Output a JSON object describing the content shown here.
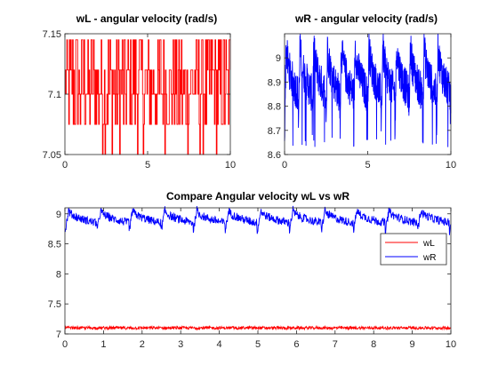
{
  "colors": {
    "wL": "#ff0000",
    "wR": "#0000ff",
    "axis": "#262626",
    "background": "#ffffff"
  },
  "chart_data": [
    {
      "type": "line",
      "title": "wL - angular velocity (rad/s)",
      "xlim": [
        0,
        10
      ],
      "ylim": [
        7.05,
        7.15
      ],
      "xticks": [
        "0",
        "5",
        "10"
      ],
      "yticks": [
        "7.05",
        "7.1",
        "7.15"
      ],
      "grid": false,
      "series": [
        {
          "color": "#ff0000",
          "levels": [
            7.075,
            7.1,
            7.12,
            7.145
          ],
          "extreme_low": 7.05,
          "x_range": [
            0,
            10
          ]
        }
      ]
    },
    {
      "type": "line",
      "title": "wR - angular velocity (rad/s)",
      "xlim": [
        0,
        10
      ],
      "ylim": [
        8.6,
        9.1
      ],
      "xticks": [
        "0",
        "5",
        "10"
      ],
      "yticks": [
        "8.6",
        "8.7",
        "8.8",
        "8.9",
        "9"
      ],
      "grid": false,
      "series": [
        {
          "color": "#0000ff",
          "period": 0.83,
          "peak": 9.07,
          "trough": 8.7,
          "baseline": 8.85,
          "x_range": [
            0,
            10
          ]
        }
      ]
    },
    {
      "type": "line",
      "title": "Compare Angular velocity wL vs wR",
      "xlim": [
        0,
        10
      ],
      "ylim": [
        7,
        9.1
      ],
      "xticks": [
        "0",
        "1",
        "2",
        "3",
        "4",
        "5",
        "6",
        "7",
        "8",
        "9",
        "10"
      ],
      "yticks": [
        "7",
        "7.5",
        "8",
        "8.5",
        "9"
      ],
      "grid": false,
      "legend": {
        "placement": "right",
        "entries": [
          "wL",
          "wR"
        ]
      },
      "series": [
        {
          "name": "wL",
          "color": "#ff0000",
          "mean": 7.1,
          "spread": 0.05
        },
        {
          "name": "wR",
          "color": "#0000ff",
          "period": 0.83,
          "peak": 9.07,
          "trough": 8.7,
          "baseline": 8.85
        }
      ]
    }
  ]
}
